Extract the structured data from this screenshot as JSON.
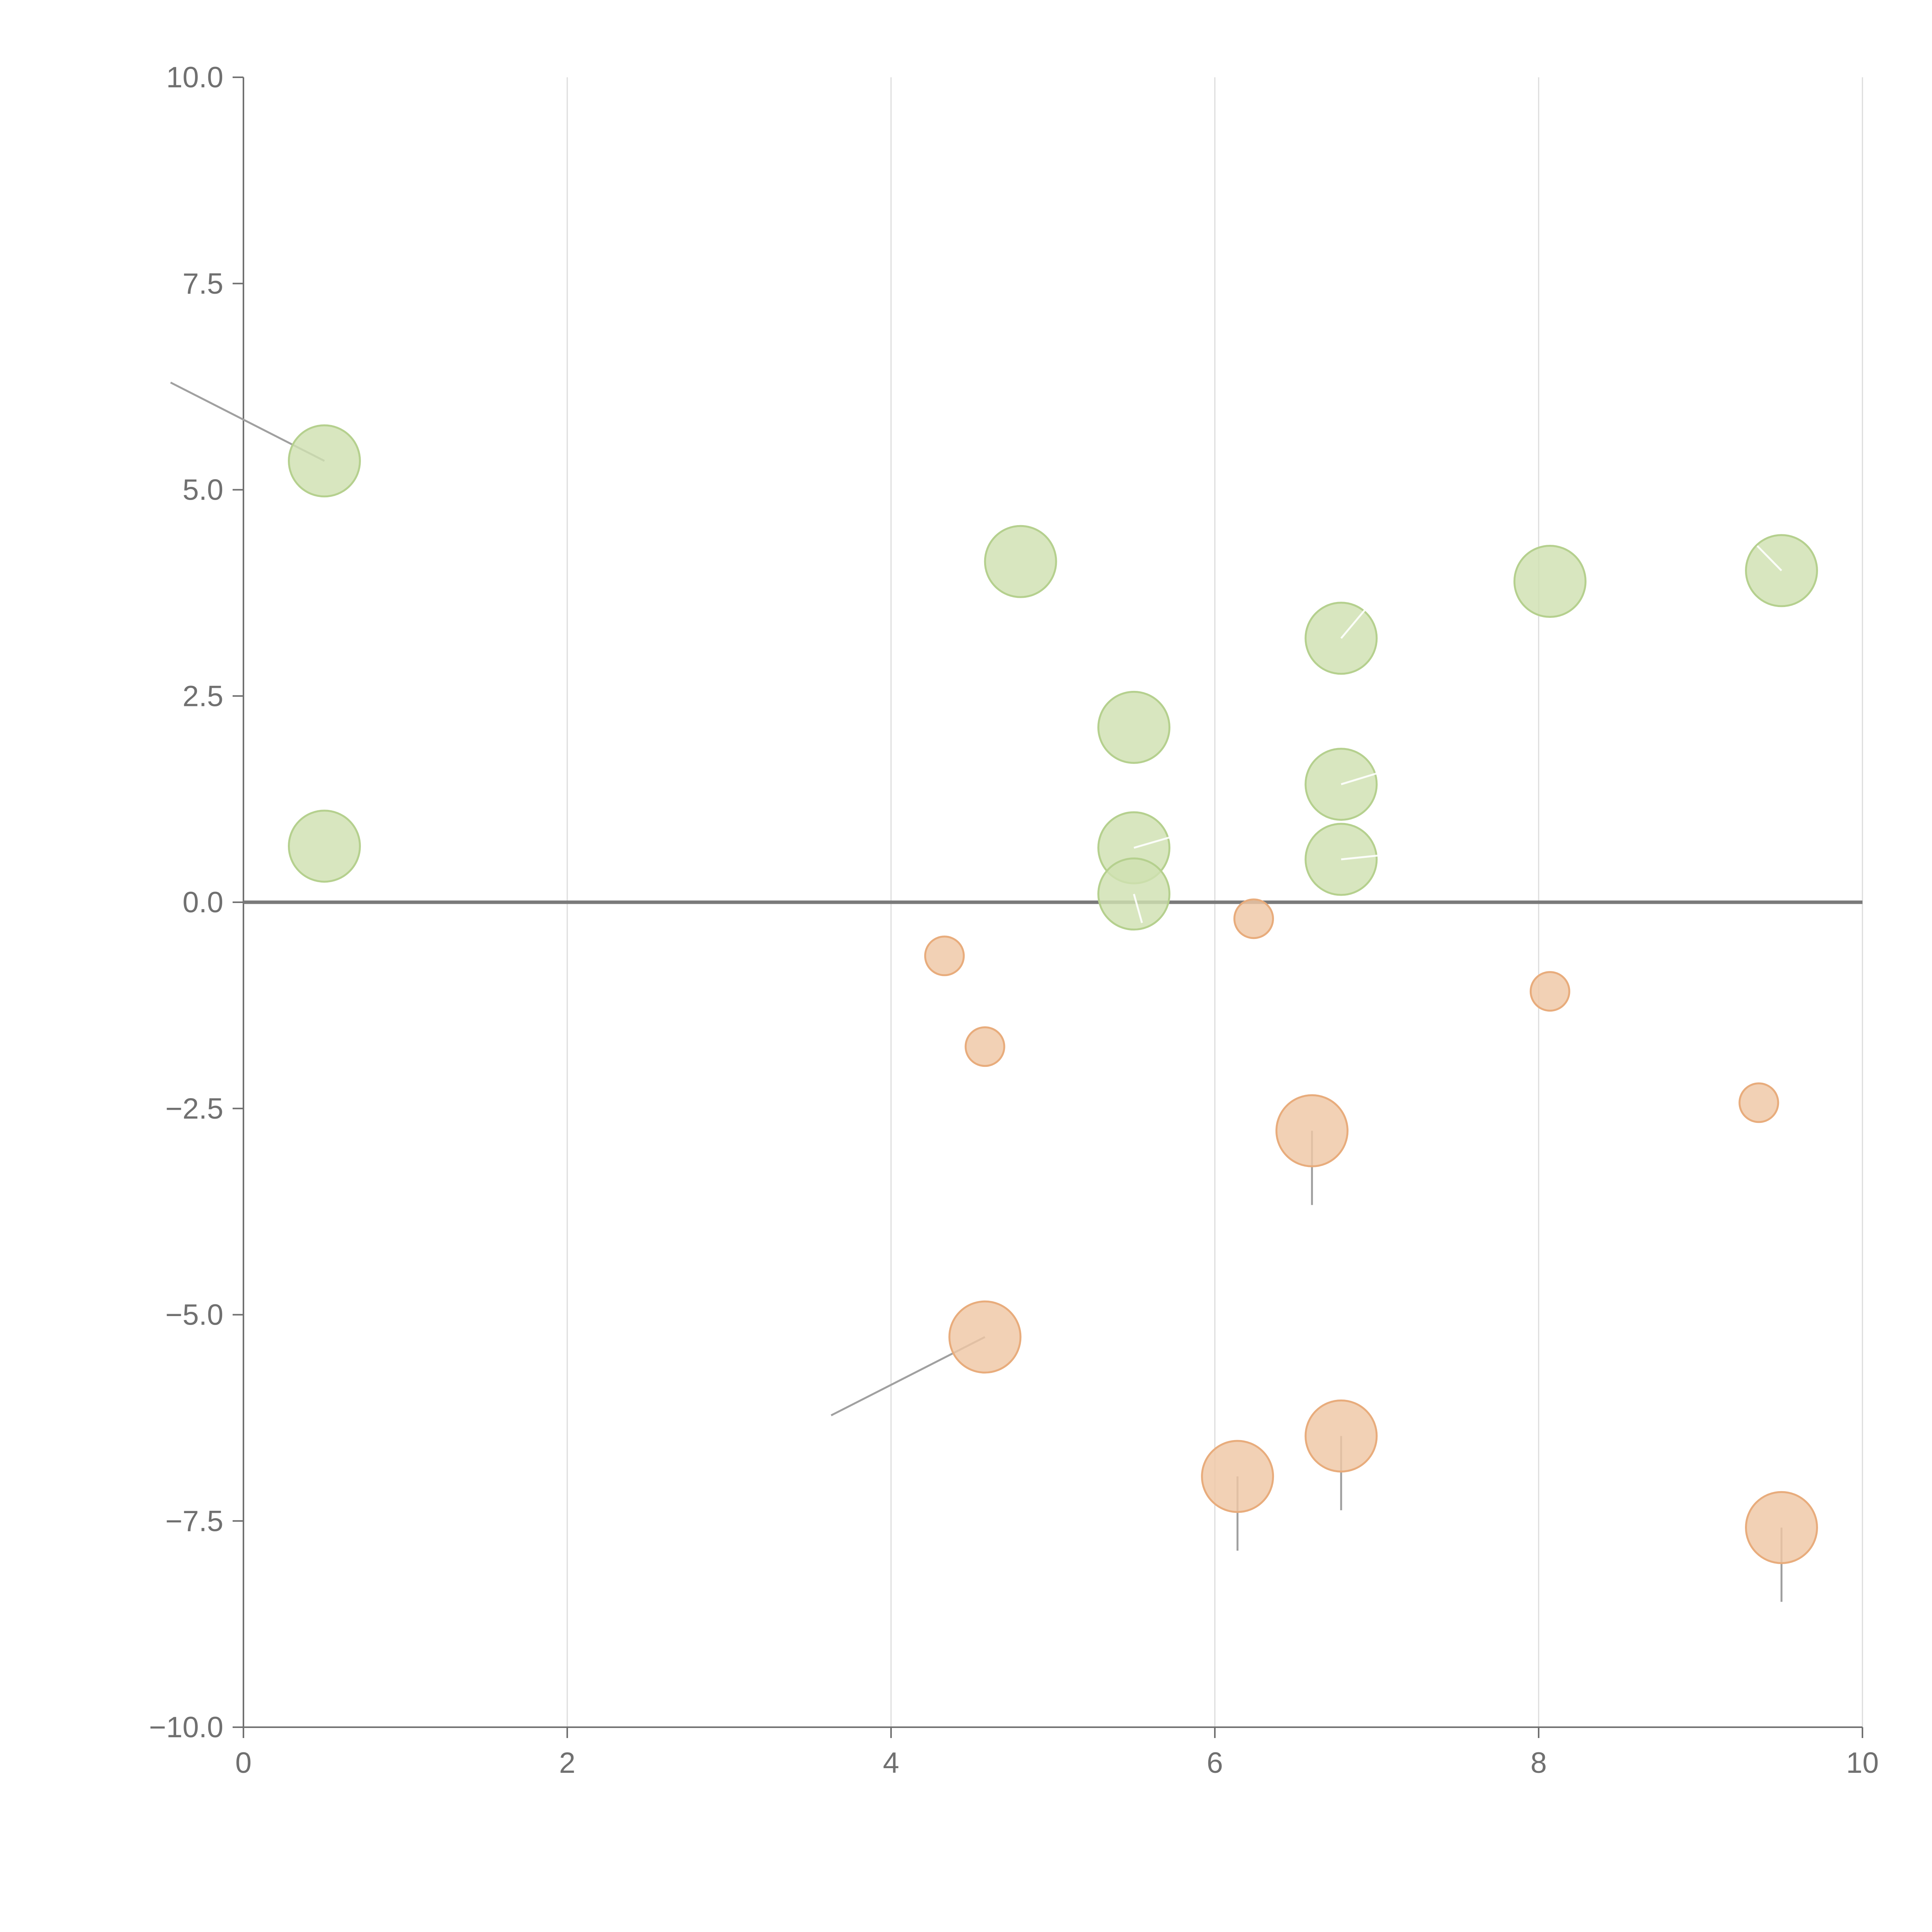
{
  "chart_data": {
    "type": "scatter",
    "subtype": "bubble",
    "title": "",
    "xlabel": "",
    "ylabel": "",
    "xlim": [
      0,
      10
    ],
    "ylim": [
      -10,
      10
    ],
    "grid": {
      "x": true,
      "y": false
    },
    "x_ticks": [
      0,
      2,
      4,
      6,
      8,
      10
    ],
    "x_tick_labels": [
      "0",
      "2",
      "4",
      "6",
      "8",
      "10"
    ],
    "y_ticks": [
      10,
      7.5,
      5,
      2.5,
      0,
      -2.5,
      -5,
      -7.5,
      -10
    ],
    "y_tick_labels": [
      "10.0",
      "7.5",
      "5.0",
      "2.5",
      "0.0",
      "−2.5",
      "−5.0",
      "−7.5",
      "−10.0"
    ],
    "colors": {
      "positive_fill": "#cfe0b1",
      "positive_stroke": "#b5d08e",
      "negative_fill": "#efc7a5",
      "negative_stroke": "#e8ac7c",
      "axis": "#707070",
      "grid": "#dcdcdc",
      "leader_dark": "#a0a0a0",
      "leader_light": "#ffffff"
    },
    "series": [
      {
        "name": "positive",
        "points": [
          {
            "x": 0.5,
            "y": 5.35,
            "size": 1.0,
            "leader": {
              "dx": -0.95,
              "dy": 0.95,
              "tone": "dark"
            }
          },
          {
            "x": 0.5,
            "y": 0.68,
            "size": 1.0
          },
          {
            "x": 4.8,
            "y": 4.13,
            "size": 1.0
          },
          {
            "x": 5.5,
            "y": 2.12,
            "size": 1.0
          },
          {
            "x": 5.5,
            "y": 0.66,
            "size": 1.0,
            "leader": {
              "dx": 0.35,
              "dy": 0.2,
              "tone": "light"
            }
          },
          {
            "x": 5.5,
            "y": 0.1,
            "size": 1.0,
            "leader": {
              "dx": 0.05,
              "dy": -0.35,
              "tone": "light"
            }
          },
          {
            "x": 6.78,
            "y": 3.2,
            "size": 1.0,
            "leader": {
              "dx": 0.15,
              "dy": 0.35,
              "tone": "light"
            }
          },
          {
            "x": 6.78,
            "y": 1.43,
            "size": 1.0,
            "leader": {
              "dx": 0.25,
              "dy": 0.15,
              "tone": "light"
            }
          },
          {
            "x": 6.78,
            "y": 0.52,
            "size": 1.0,
            "leader": {
              "dx": 0.25,
              "dy": 0.05,
              "tone": "light"
            }
          },
          {
            "x": 8.07,
            "y": 3.89,
            "size": 1.0
          },
          {
            "x": 9.5,
            "y": 4.02,
            "size": 1.0,
            "leader": {
              "dx": -0.15,
              "dy": 0.3,
              "tone": "light"
            }
          }
        ]
      },
      {
        "name": "negative",
        "points": [
          {
            "x": 4.33,
            "y": -0.65,
            "size": 0.5
          },
          {
            "x": 4.58,
            "y": -1.75,
            "size": 0.5
          },
          {
            "x": 4.58,
            "y": -5.27,
            "size": 1.0,
            "leader": {
              "dx": -0.95,
              "dy": -0.95,
              "tone": "dark"
            }
          },
          {
            "x": 6.24,
            "y": -0.2,
            "size": 0.5
          },
          {
            "x": 6.6,
            "y": -2.77,
            "size": 1.0,
            "leader": {
              "dx": 0.0,
              "dy": -0.9,
              "tone": "dark"
            }
          },
          {
            "x": 6.14,
            "y": -6.96,
            "size": 1.0,
            "leader": {
              "dx": 0.0,
              "dy": -0.9,
              "tone": "dark"
            }
          },
          {
            "x": 6.78,
            "y": -6.47,
            "size": 1.0,
            "leader": {
              "dx": 0.0,
              "dy": -0.9,
              "tone": "dark"
            }
          },
          {
            "x": 8.07,
            "y": -1.08,
            "size": 0.5
          },
          {
            "x": 9.36,
            "y": -2.43,
            "size": 0.5
          },
          {
            "x": 9.5,
            "y": -7.58,
            "size": 1.0,
            "leader": {
              "dx": 0.0,
              "dy": -0.9,
              "tone": "dark"
            }
          }
        ]
      }
    ]
  }
}
